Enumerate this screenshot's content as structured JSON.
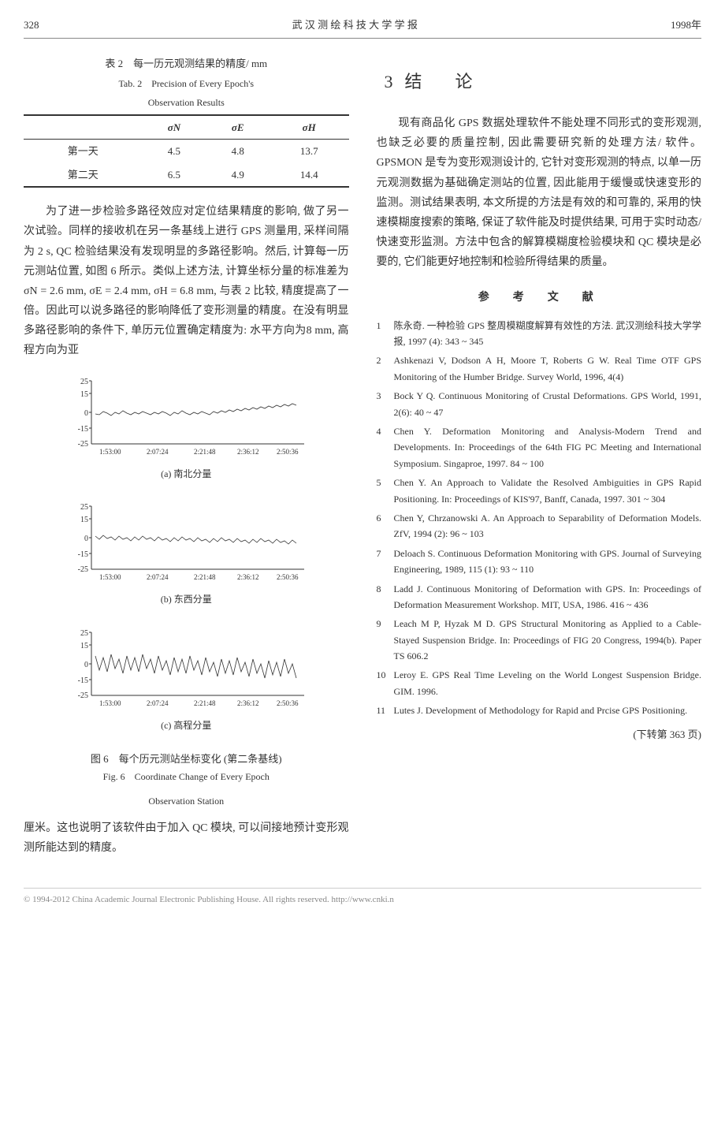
{
  "header": {
    "page_num": "328",
    "journal": "武 汉 测 绘 科 技 大 学 学 报",
    "year": "1998年"
  },
  "left": {
    "table2": {
      "caption_zh": "表 2　每一历元观测结果的精度/ mm",
      "caption_en1": "Tab. 2　Precision of Every Epoch's",
      "caption_en2": "Observation Results",
      "headers": [
        "",
        "σN",
        "σE",
        "σH"
      ],
      "rows": [
        [
          "第一天",
          "4.5",
          "4.8",
          "13.7"
        ],
        [
          "第二天",
          "6.5",
          "4.9",
          "14.4"
        ]
      ]
    },
    "para1": "为了进一步检验多路径效应对定位结果精度的影响, 做了另一次试验。同样的接收机在另一条基线上进行 GPS 测量用, 采样间隔为 2 s, QC 检验结果没有发现明显的多路径影响。然后, 计算每一历元测站位置, 如图 6 所示。类似上述方法, 计算坐标分量的标准差为 σN = 2.6 mm, σE = 2.4 mm, σH = 6.8 mm, 与表 2 比较, 精度提高了一倍。因此可以说多路径的影响降低了变形测量的精度。在没有明显多路径影响的条件下, 单历元位置确定精度为: 水平方向为8 mm, 高程方向为亚",
    "charts": {
      "ylim": [
        -25,
        25
      ],
      "yticks": [
        -25,
        -15,
        0,
        15,
        25
      ],
      "xticks": [
        "1:53:00",
        "2:07:24",
        "2:21:48",
        "2:36:12",
        "2:50:36"
      ],
      "axis_color": "#333333",
      "line_color": "#333333",
      "background": "#ffffff",
      "a_label": "(a) 南北分量",
      "b_label": "(b) 东西分量",
      "c_label": "(c) 高程分量",
      "fig_zh": "图 6　每个历元测站坐标变化 (第二条基线)",
      "fig_en1": "Fig. 6　Coordinate Change of Every Epoch",
      "fig_en2": "Observation Station"
    },
    "para2": "厘米。这也说明了该软件由于加入 QC 模块, 可以间接地预计变形观测所能达到的精度。"
  },
  "right": {
    "section_num": "3",
    "section_title": "结　论",
    "para": "现有商品化 GPS 数据处理软件不能处理不同形式的变形观测, 也缺乏必要的质量控制, 因此需要研究新的处理方法/ 软件。GPSMON 是专为变形观测设计的, 它针对变形观测的特点, 以单一历元观测数据为基础确定测站的位置, 因此能用于缓慢或快速变形的监测。测试结果表明, 本文所提的方法是有效的和可靠的, 采用的快速模糊度搜索的策略, 保证了软件能及时提供结果, 可用于实时动态/ 快速变形监测。方法中包含的解算模糊度检验模块和 QC 模块是必要的, 它们能更好地控制和检验所得结果的质量。",
    "ref_title": "参　考　文　献",
    "refs": [
      "陈永奇. 一种检验 GPS 整周模糊度解算有效性的方法. 武汉测绘科技大学学报, 1997 (4): 343 ~ 345",
      "Ashkenazi V, Dodson A H, Moore T, Roberts G W. Real Time OTF GPS Monitoring of the Humber Bridge. Survey World, 1996, 4(4)",
      "Bock Y Q. Continuous Monitoring of Crustal Deformations. GPS World, 1991, 2(6): 40 ~ 47",
      "Chen Y. Deformation Monitoring and Analysis-Modern Trend and Developments. In: Proceedings of the 64th FIG PC Meeting and International Symposium. Singaproe, 1997. 84 ~ 100",
      "Chen Y. An Approach to Validate the Resolved Ambiguities in GPS Rapid Positioning. In: Proceedings of KIS'97, Banff, Canada, 1997. 301 ~ 304",
      "Chen Y, Chrzanowski A. An Approach to Separability of Deformation Models. ZfV, 1994 (2): 96 ~ 103",
      "Deloach S. Continuous Deformation Monitoring with GPS. Journal of Surveying Engineering, 1989, 115 (1): 93 ~ 110",
      "Ladd J. Continuous Monitoring of Deformation with GPS. In: Proceedings of Deformation Measurement Workshop. MIT, USA, 1986. 416 ~ 436",
      "Leach M P, Hyzak M D. GPS Structural Monitoring as Applied to a Cable-Stayed Suspension Bridge. In: Proceedings of FIG 20 Congress, 1994(b). Paper TS 606.2",
      "Leroy E. GPS Real Time Leveling on the World Longest Suspension Bridge. GIM. 1996.",
      "Lutes J. Development of Methodology for Rapid and Prcise GPS Positioning."
    ],
    "continued": "(下转第 363 页)"
  },
  "footer": "© 1994-2012 China Academic Journal Electronic Publishing House. All rights reserved.    http://www.cnki.n"
}
